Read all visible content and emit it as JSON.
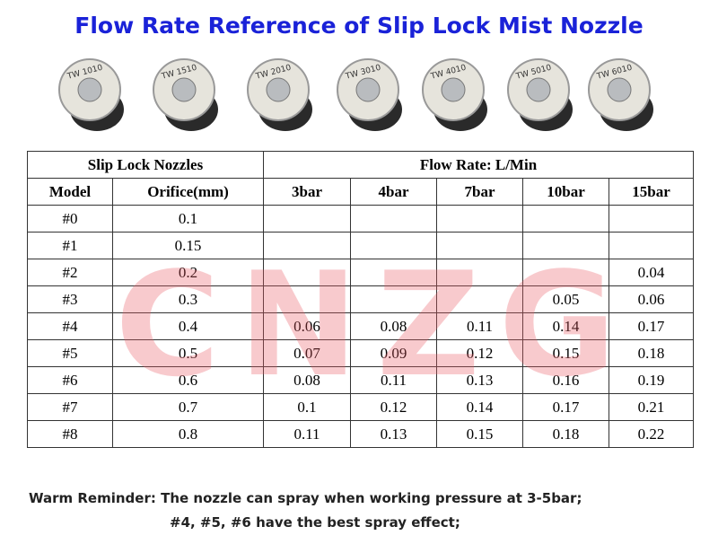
{
  "title": "Flow Rate Reference of Slip Lock Mist Nozzle",
  "nozzles": [
    "TW 1010",
    "TW 1510",
    "TW 2010",
    "TW 3010",
    "TW 4010",
    "TW 5010",
    "TW 6010"
  ],
  "watermark": "CNZG",
  "table": {
    "group_headers": [
      "Slip Lock Nozzles",
      "Flow Rate: L/Min"
    ],
    "headers": [
      "Model",
      "Orifice(mm)",
      "3bar",
      "4bar",
      "7bar",
      "10bar",
      "15bar"
    ],
    "rows": [
      [
        "#0",
        0.1,
        null,
        null,
        null,
        null,
        null
      ],
      [
        "#1",
        0.15,
        null,
        null,
        null,
        null,
        null
      ],
      [
        "#2",
        0.2,
        null,
        null,
        null,
        null,
        0.04
      ],
      [
        "#3",
        0.3,
        null,
        null,
        null,
        0.05,
        0.06
      ],
      [
        "#4",
        0.4,
        0.06,
        0.08,
        0.11,
        0.14,
        0.17
      ],
      [
        "#5",
        0.5,
        0.07,
        0.09,
        0.12,
        0.15,
        0.18
      ],
      [
        "#6",
        0.6,
        0.08,
        0.11,
        0.13,
        0.16,
        0.19
      ],
      [
        "#7",
        0.7,
        0.1,
        0.12,
        0.14,
        0.17,
        0.21
      ],
      [
        "#8",
        0.8,
        0.11,
        0.13,
        0.15,
        0.18,
        0.22
      ]
    ]
  },
  "reminder": [
    "Warm Reminder: The nozzle can spray when working pressure at 3-5bar;",
    "#4, #5, #6 have the best spray effect;"
  ]
}
